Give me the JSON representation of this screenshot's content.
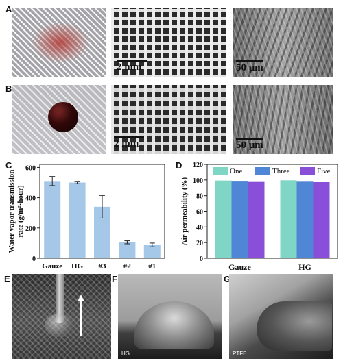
{
  "figure": {
    "panels": {
      "a": "A",
      "b": "B",
      "c": "C",
      "d": "D",
      "e": "E",
      "f": "F",
      "g": "G"
    },
    "scale_labels": {
      "a_mid": "2 mm",
      "a_right": "50 μm",
      "b_mid": "2 mm",
      "b_right": "50 μm"
    },
    "photo_captions": {
      "f": "HG",
      "g": "PTFE"
    }
  },
  "chart_data": [
    {
      "type": "bar",
      "title": "",
      "xlabel": "",
      "ylabel": "Water vapor transmission rate (g/m²·hour)",
      "ylabel_lines": [
        "Water vapor transmission",
        "rate (g/m²·hour)"
      ],
      "categories": [
        "Gauze",
        "HG",
        "#3",
        "#2",
        "#1"
      ],
      "values": [
        510,
        500,
        340,
        105,
        88
      ],
      "errors": [
        30,
        8,
        75,
        10,
        12
      ],
      "ylim": [
        0,
        620
      ],
      "yticks": [
        0,
        200,
        400,
        600
      ],
      "color": "#a6c8e8"
    },
    {
      "type": "bar",
      "title": "",
      "xlabel": "",
      "ylabel": "Air permeability (%)",
      "categories": [
        "Gauze",
        "HG"
      ],
      "series": [
        {
          "name": "One",
          "values": [
            99.3,
            99.6
          ],
          "color": "#7fd6c4"
        },
        {
          "name": "Three",
          "values": [
            98.9,
            98.7
          ],
          "color": "#4f86d6"
        },
        {
          "name": "Five",
          "values": [
            98.4,
            97.6
          ],
          "color": "#8a4fd8"
        }
      ],
      "ylim": [
        0,
        120
      ],
      "yticks": [
        0,
        20,
        40,
        60,
        80,
        100,
        120
      ],
      "legend": "top"
    }
  ]
}
